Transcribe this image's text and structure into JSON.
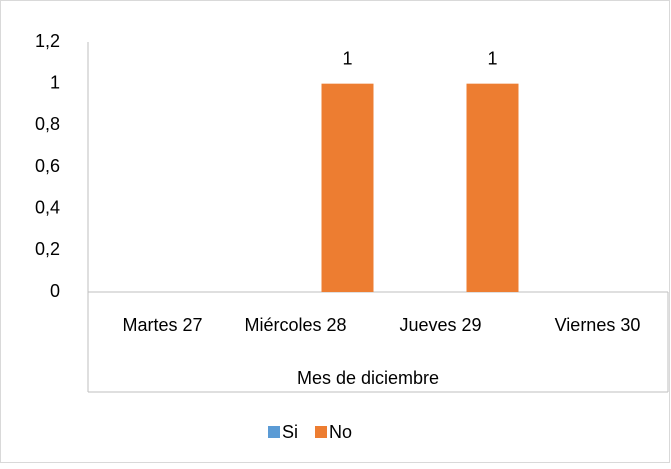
{
  "chart_data": {
    "type": "bar",
    "categories": [
      "Martes 27",
      "Miércoles 28",
      "Jueves 29",
      "Viernes 30"
    ],
    "x_label": "Mes de diciembre",
    "series": [
      {
        "name": "Si",
        "color": "#5b9bd5",
        "values": [
          null,
          null,
          null,
          null
        ]
      },
      {
        "name": "No",
        "color": "#ed7d31",
        "values": [
          null,
          1,
          1,
          null
        ]
      }
    ],
    "ylim": [
      0,
      1.2
    ],
    "yticks": [
      0,
      {
        "value": 0.2,
        "label": "0,2"
      },
      {
        "value": 0.4,
        "label": "0,4"
      },
      {
        "value": 0.6,
        "label": "0,6"
      },
      {
        "value": 0.8,
        "label": "0,8"
      },
      1,
      {
        "value": 1.2,
        "label": "1,2"
      }
    ],
    "data_labels": true,
    "legend": "bottom"
  }
}
